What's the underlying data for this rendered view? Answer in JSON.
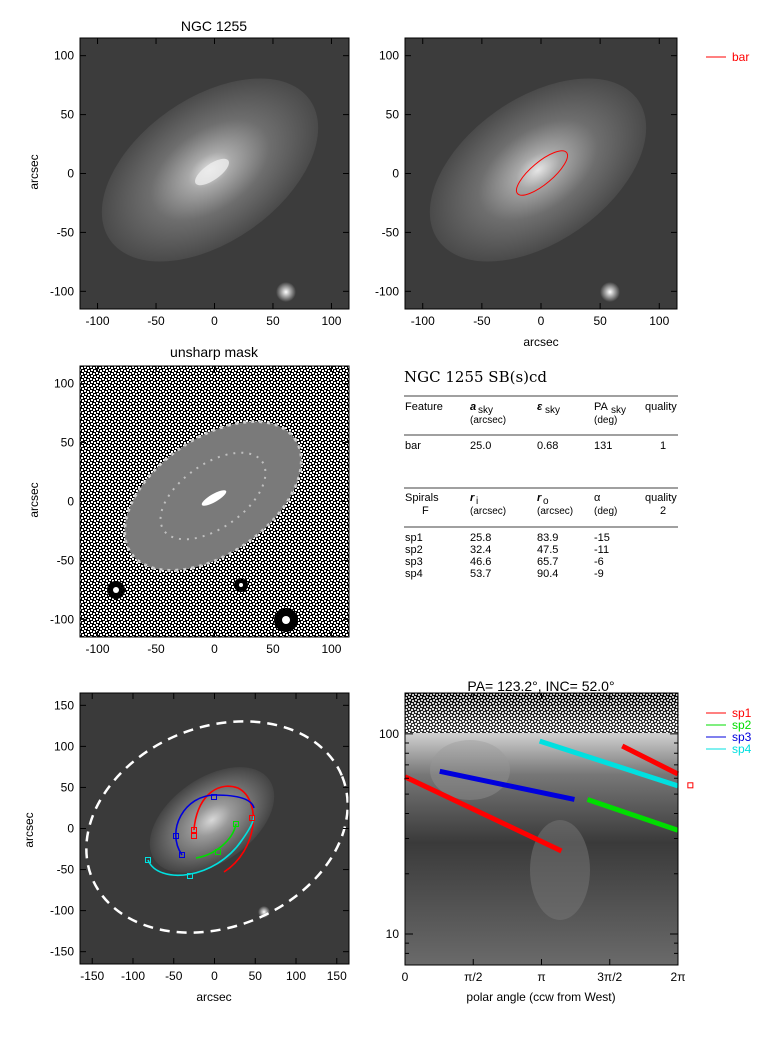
{
  "panels": {
    "top_left": {
      "title": "NGC 1255",
      "ylabel": "arcsec",
      "xticks": [
        "-100",
        "-50",
        "0",
        "50",
        "100"
      ],
      "yticks": [
        "100",
        "50",
        "0",
        "-50",
        "-100"
      ]
    },
    "top_right": {
      "xlabel": "arcsec",
      "xticks": [
        "-100",
        "-50",
        "0",
        "50",
        "100"
      ],
      "yticks": [
        "100",
        "50",
        "0",
        "-50",
        "-100"
      ],
      "legend": [
        "bar"
      ]
    },
    "mid_left": {
      "title": "unsharp mask",
      "ylabel": "arcsec",
      "xticks": [
        "-100",
        "-50",
        "0",
        "50",
        "100"
      ],
      "yticks": [
        "100",
        "50",
        "0",
        "-50",
        "-100"
      ]
    },
    "bot_left": {
      "xlabel": "arcsec",
      "ylabel": "arcsec",
      "xticks": [
        "-150",
        "-100",
        "-50",
        "0",
        "50",
        "100",
        "150"
      ],
      "yticks": [
        "150",
        "100",
        "50",
        "0",
        "-50",
        "-100",
        "-150"
      ]
    },
    "bot_right": {
      "title": "PA= 123.2°, INC=  52.0°",
      "xlabel": "polar angle (ccw from West)",
      "xticks": [
        "0",
        "π/2",
        "π",
        "3π/2",
        "2π"
      ],
      "yticks": [
        "100",
        "10"
      ],
      "legend": [
        "sp1",
        "sp2",
        "sp3",
        "sp4"
      ]
    }
  },
  "table": {
    "title": "NGC 1255  SB(s)cd",
    "bar_header": {
      "c1": "Feature",
      "c2": "a",
      "c2sub": "sky",
      "c2unit": "(arcsec)",
      "c3": "ε",
      "c3sub": "sky",
      "c4": "PA",
      "c4sub": "sky",
      "c4unit": "(deg)",
      "c5": "quality"
    },
    "bar_row": [
      "bar",
      "25.0",
      "0.68",
      "131",
      "1"
    ],
    "sp_header": {
      "c1": "Spirals",
      "c1b": "F",
      "c2": "r",
      "c2sub": "i",
      "c2unit": "(arcsec)",
      "c3": "r",
      "c3sub": "o",
      "c3unit": "(arcsec)",
      "c4": "α",
      "c4unit": "(deg)",
      "c5": "quality",
      "c5b": "2"
    },
    "sp_rows": [
      [
        "sp1",
        "25.8",
        "83.9",
        "-15"
      ],
      [
        "sp2",
        "32.4",
        "47.5",
        "-11"
      ],
      [
        "sp3",
        "46.6",
        "65.7",
        "-6"
      ],
      [
        "sp4",
        "53.7",
        "90.4",
        "-9"
      ]
    ]
  },
  "colors": {
    "sp1": "#ff0000",
    "sp2": "#00dd00",
    "sp3": "#0000dd",
    "sp4": "#00e0e0",
    "bar": "#ff0000",
    "ellipse": "#ffffff"
  },
  "chart_data": {
    "type": "line",
    "title": "PA= 123.2°, INC=  52.0°",
    "xlabel": "polar angle (ccw from West)",
    "yscale": "log",
    "xlim": [
      0,
      6.2832
    ],
    "ylim": [
      7,
      160
    ],
    "series": [
      {
        "name": "sp1",
        "points": [
          [
            0,
            61
          ],
          [
            3.6,
            26
          ],
          [
            5.0,
            87
          ],
          [
            6.28,
            63
          ]
        ]
      },
      {
        "name": "sp2",
        "points": [
          [
            4.2,
            47
          ],
          [
            6.28,
            33
          ]
        ]
      },
      {
        "name": "sp3",
        "points": [
          [
            0.8,
            65
          ],
          [
            3.9,
            47
          ]
        ]
      },
      {
        "name": "sp4",
        "points": [
          [
            3.1,
            92
          ],
          [
            6.28,
            55
          ]
        ]
      }
    ]
  }
}
